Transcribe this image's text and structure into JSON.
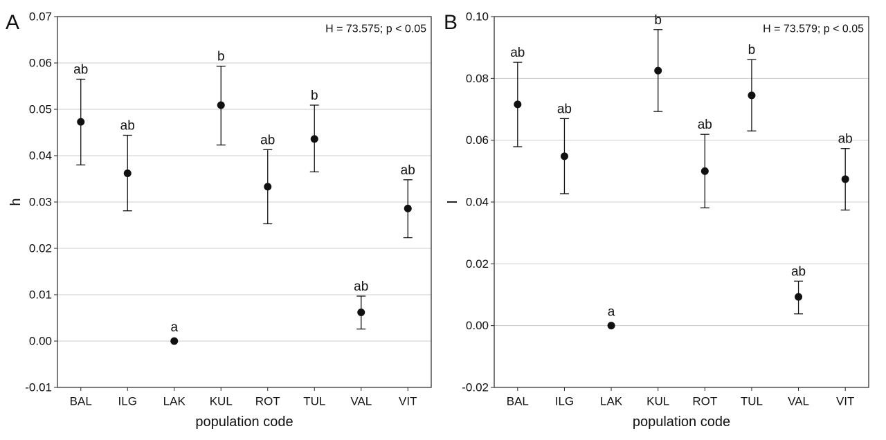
{
  "chart_data": [
    {
      "panel_label": "A",
      "type": "scatter",
      "subtype": "mean with error bars",
      "annotation": "H = 73.575; p < 0.05",
      "xlabel": "population code",
      "ylabel": "h",
      "categories": [
        "BAL",
        "ILG",
        "LAK",
        "KUL",
        "ROT",
        "TUL",
        "VAL",
        "VIT"
      ],
      "values": [
        0.0473,
        0.0362,
        0.0,
        0.0509,
        0.0333,
        0.0436,
        0.0062,
        0.0286
      ],
      "err_low": [
        0.038,
        0.0281,
        0.0,
        0.0423,
        0.0253,
        0.0365,
        0.0026,
        0.0223
      ],
      "err_high": [
        0.0565,
        0.0444,
        0.0,
        0.0593,
        0.0413,
        0.0509,
        0.0097,
        0.0348
      ],
      "significance_letters": [
        "ab",
        "ab",
        "a",
        "b",
        "ab",
        "b",
        "ab",
        "ab"
      ],
      "ylim": [
        -0.01,
        0.07
      ],
      "yticks": [
        "-0.01",
        "0.00",
        "0.01",
        "0.02",
        "0.03",
        "0.04",
        "0.05",
        "0.06",
        "0.07"
      ],
      "grid": true
    },
    {
      "panel_label": "B",
      "type": "scatter",
      "subtype": "mean with error bars",
      "annotation": "H = 73.579; p < 0.05",
      "xlabel": "population code",
      "ylabel": "I",
      "categories": [
        "BAL",
        "ILG",
        "LAK",
        "KUL",
        "ROT",
        "TUL",
        "VAL",
        "VIT"
      ],
      "values": [
        0.0716,
        0.0548,
        0.0,
        0.0825,
        0.05,
        0.0745,
        0.0093,
        0.0474
      ],
      "err_low": [
        0.0579,
        0.0427,
        0.0,
        0.0693,
        0.0381,
        0.063,
        0.0038,
        0.0374
      ],
      "err_high": [
        0.0852,
        0.067,
        0.0,
        0.0958,
        0.0619,
        0.0861,
        0.0144,
        0.0573
      ],
      "significance_letters": [
        "ab",
        "ab",
        "a",
        "b",
        "ab",
        "b",
        "ab",
        "ab"
      ],
      "ylim": [
        -0.02,
        0.1
      ],
      "yticks": [
        "-0.02",
        "0.00",
        "0.02",
        "0.04",
        "0.06",
        "0.08",
        "0.10"
      ],
      "grid": true
    }
  ]
}
